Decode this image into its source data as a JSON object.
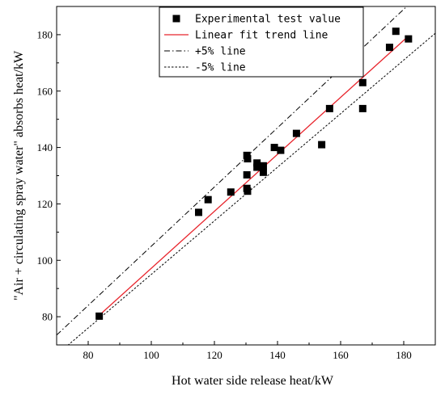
{
  "chart_data": {
    "type": "scatter",
    "xlabel": "Hot water side release heat/kW",
    "ylabel": "\"Air + circulating spray water\" absorbs heat/kW",
    "xlim": [
      70,
      190
    ],
    "ylim": [
      70,
      190
    ],
    "x_ticks": [
      80,
      100,
      120,
      140,
      160,
      180
    ],
    "y_ticks": [
      80,
      100,
      120,
      140,
      160,
      180
    ],
    "legend_position": "top-center",
    "legend": [
      {
        "label": "Experimental test value",
        "style": "square-marker"
      },
      {
        "label": "Linear fit trend line",
        "style": "solid-red"
      },
      {
        "label": "+5% line",
        "style": "dash-dot"
      },
      {
        "label": "-5% line",
        "style": "dotted"
      }
    ],
    "series": [
      {
        "name": "Experimental test value",
        "points": [
          [
            83.5,
            80.2
          ],
          [
            115,
            117
          ],
          [
            118,
            121.5
          ],
          [
            125.2,
            124.2
          ],
          [
            130.3,
            137.2
          ],
          [
            130.5,
            136
          ],
          [
            130.3,
            130.3
          ],
          [
            130.3,
            125.5
          ],
          [
            130.5,
            124.5
          ],
          [
            133.5,
            134.5
          ],
          [
            133.5,
            133
          ],
          [
            135.5,
            133.5
          ],
          [
            135.5,
            131.2
          ],
          [
            139,
            140
          ],
          [
            141,
            139
          ],
          [
            146,
            145
          ],
          [
            154,
            141
          ],
          [
            156.5,
            153.8
          ],
          [
            167,
            163
          ],
          [
            167,
            153.8
          ],
          [
            175.5,
            175.5
          ],
          [
            177.5,
            181.2
          ],
          [
            181.5,
            178.5
          ]
        ]
      },
      {
        "name": "Linear fit trend line",
        "line": [
          [
            83.5,
            80.5
          ],
          [
            181.5,
            179.5
          ]
        ]
      },
      {
        "name": "+5% line",
        "slope": 1.05,
        "intercept": 0
      },
      {
        "name": "-5% line",
        "slope": 0.95,
        "intercept": 0
      }
    ],
    "colors": {
      "fit": "#e8242c",
      "markers": "#000000",
      "reference": "#000000"
    }
  }
}
